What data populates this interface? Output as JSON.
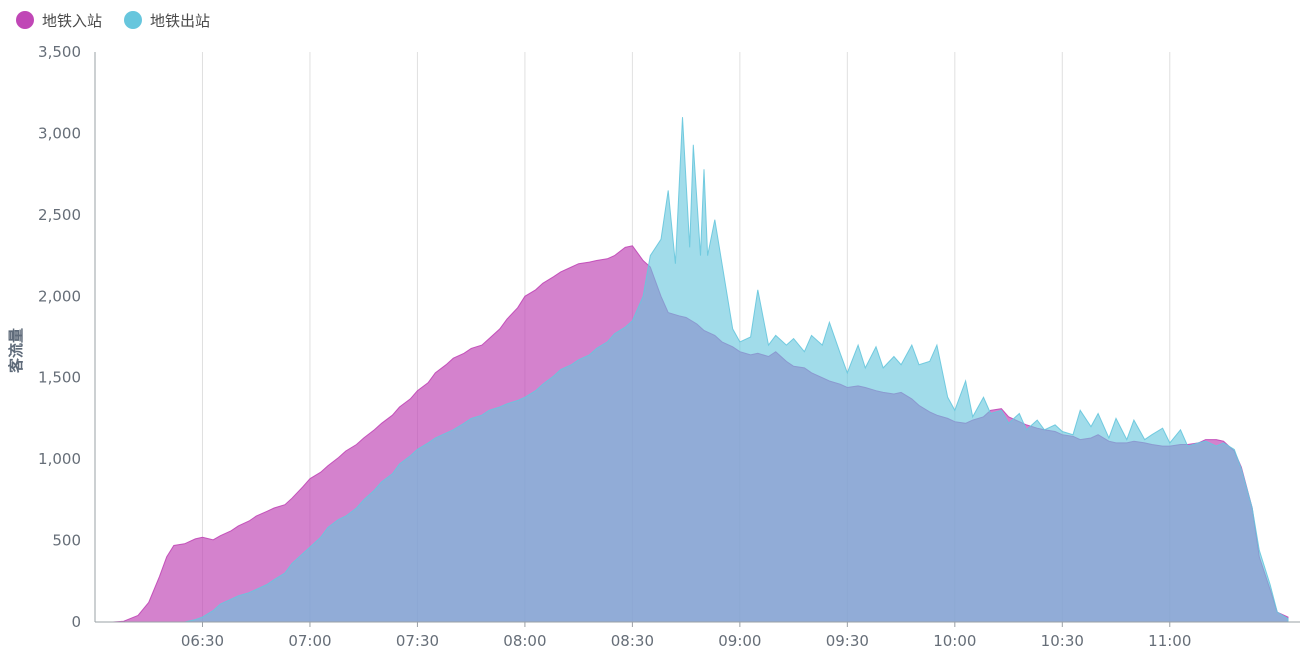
{
  "legend": {
    "in_label": "地铁入站",
    "out_label": "地铁出站"
  },
  "colors": {
    "in": "#c047b6",
    "out": "#67c6dd",
    "grid": "#e0e0e0",
    "axis": "#9aa0a6",
    "tick_text": "#666e78"
  },
  "chart_data": {
    "type": "area",
    "title": "",
    "xlabel": "",
    "ylabel": "客流量",
    "ylim": [
      0,
      3500
    ],
    "yticks": [
      0,
      500,
      1000,
      1500,
      2000,
      2500,
      3000,
      3500
    ],
    "ytick_labels": [
      "0",
      "500",
      "1,000",
      "1,500",
      "2,000",
      "2,500",
      "3,000",
      "3,500"
    ],
    "xlim": [
      "06:00",
      "11:33"
    ],
    "xticks": [
      "06:30",
      "07:00",
      "07:30",
      "08:00",
      "08:30",
      "09:00",
      "09:30",
      "10:00",
      "10:30",
      "11:00"
    ],
    "legend_position": "top-left",
    "grid": "vertical",
    "series": [
      {
        "name": "地铁入站",
        "color": "#c047b6",
        "points": [
          [
            "06:00",
            0
          ],
          [
            "06:05",
            0
          ],
          [
            "06:08",
            5
          ],
          [
            "06:12",
            40
          ],
          [
            "06:15",
            120
          ],
          [
            "06:18",
            280
          ],
          [
            "06:20",
            400
          ],
          [
            "06:22",
            470
          ],
          [
            "06:25",
            480
          ],
          [
            "06:28",
            510
          ],
          [
            "06:30",
            520
          ],
          [
            "06:33",
            505
          ],
          [
            "06:35",
            530
          ],
          [
            "06:38",
            560
          ],
          [
            "06:40",
            590
          ],
          [
            "06:43",
            620
          ],
          [
            "06:45",
            650
          ],
          [
            "06:48",
            680
          ],
          [
            "06:50",
            700
          ],
          [
            "06:53",
            720
          ],
          [
            "06:55",
            760
          ],
          [
            "06:58",
            830
          ],
          [
            "07:00",
            880
          ],
          [
            "07:03",
            920
          ],
          [
            "07:05",
            960
          ],
          [
            "07:08",
            1010
          ],
          [
            "07:10",
            1050
          ],
          [
            "07:13",
            1090
          ],
          [
            "07:15",
            1130
          ],
          [
            "07:18",
            1180
          ],
          [
            "07:20",
            1220
          ],
          [
            "07:23",
            1270
          ],
          [
            "07:25",
            1320
          ],
          [
            "07:28",
            1370
          ],
          [
            "07:30",
            1420
          ],
          [
            "07:33",
            1470
          ],
          [
            "07:35",
            1530
          ],
          [
            "07:38",
            1580
          ],
          [
            "07:40",
            1620
          ],
          [
            "07:43",
            1650
          ],
          [
            "07:45",
            1680
          ],
          [
            "07:48",
            1700
          ],
          [
            "07:50",
            1740
          ],
          [
            "07:53",
            1800
          ],
          [
            "07:55",
            1860
          ],
          [
            "07:58",
            1930
          ],
          [
            "08:00",
            2000
          ],
          [
            "08:03",
            2040
          ],
          [
            "08:05",
            2080
          ],
          [
            "08:08",
            2120
          ],
          [
            "08:10",
            2150
          ],
          [
            "08:13",
            2180
          ],
          [
            "08:15",
            2200
          ],
          [
            "08:18",
            2210
          ],
          [
            "08:20",
            2220
          ],
          [
            "08:23",
            2230
          ],
          [
            "08:25",
            2250
          ],
          [
            "08:28",
            2300
          ],
          [
            "08:30",
            2310
          ],
          [
            "08:33",
            2220
          ],
          [
            "08:35",
            2180
          ],
          [
            "08:38",
            2000
          ],
          [
            "08:40",
            1900
          ],
          [
            "08:43",
            1880
          ],
          [
            "08:45",
            1870
          ],
          [
            "08:48",
            1830
          ],
          [
            "08:50",
            1790
          ],
          [
            "08:53",
            1760
          ],
          [
            "08:55",
            1720
          ],
          [
            "08:58",
            1690
          ],
          [
            "09:00",
            1660
          ],
          [
            "09:03",
            1640
          ],
          [
            "09:05",
            1650
          ],
          [
            "09:08",
            1630
          ],
          [
            "09:10",
            1660
          ],
          [
            "09:13",
            1600
          ],
          [
            "09:15",
            1570
          ],
          [
            "09:18",
            1560
          ],
          [
            "09:20",
            1530
          ],
          [
            "09:23",
            1500
          ],
          [
            "09:25",
            1480
          ],
          [
            "09:28",
            1460
          ],
          [
            "09:30",
            1440
          ],
          [
            "09:33",
            1450
          ],
          [
            "09:35",
            1440
          ],
          [
            "09:38",
            1420
          ],
          [
            "09:40",
            1410
          ],
          [
            "09:43",
            1400
          ],
          [
            "09:45",
            1410
          ],
          [
            "09:48",
            1370
          ],
          [
            "09:50",
            1330
          ],
          [
            "09:53",
            1290
          ],
          [
            "09:55",
            1270
          ],
          [
            "09:58",
            1250
          ],
          [
            "10:00",
            1230
          ],
          [
            "10:03",
            1220
          ],
          [
            "10:05",
            1240
          ],
          [
            "10:08",
            1260
          ],
          [
            "10:10",
            1300
          ],
          [
            "10:13",
            1310
          ],
          [
            "10:15",
            1260
          ],
          [
            "10:18",
            1230
          ],
          [
            "10:20",
            1210
          ],
          [
            "10:23",
            1190
          ],
          [
            "10:25",
            1180
          ],
          [
            "10:28",
            1170
          ],
          [
            "10:30",
            1150
          ],
          [
            "10:33",
            1140
          ],
          [
            "10:35",
            1120
          ],
          [
            "10:38",
            1130
          ],
          [
            "10:40",
            1150
          ],
          [
            "10:43",
            1110
          ],
          [
            "10:45",
            1100
          ],
          [
            "10:48",
            1100
          ],
          [
            "10:50",
            1110
          ],
          [
            "10:53",
            1100
          ],
          [
            "10:55",
            1090
          ],
          [
            "10:58",
            1080
          ],
          [
            "11:00",
            1080
          ],
          [
            "11:03",
            1090
          ],
          [
            "11:05",
            1090
          ],
          [
            "11:08",
            1100
          ],
          [
            "11:10",
            1120
          ],
          [
            "11:13",
            1120
          ],
          [
            "11:15",
            1110
          ],
          [
            "11:18",
            1050
          ],
          [
            "11:20",
            950
          ],
          [
            "11:23",
            700
          ],
          [
            "11:25",
            400
          ],
          [
            "11:28",
            200
          ],
          [
            "11:30",
            60
          ],
          [
            "11:33",
            30
          ]
        ]
      },
      {
        "name": "地铁出站",
        "color": "#67c6dd",
        "points": [
          [
            "06:00",
            0
          ],
          [
            "06:25",
            0
          ],
          [
            "06:28",
            15
          ],
          [
            "06:30",
            30
          ],
          [
            "06:33",
            70
          ],
          [
            "06:35",
            110
          ],
          [
            "06:38",
            140
          ],
          [
            "06:40",
            160
          ],
          [
            "06:43",
            180
          ],
          [
            "06:45",
            200
          ],
          [
            "06:48",
            230
          ],
          [
            "06:50",
            260
          ],
          [
            "06:53",
            300
          ],
          [
            "06:55",
            360
          ],
          [
            "06:58",
            420
          ],
          [
            "07:00",
            460
          ],
          [
            "07:03",
            520
          ],
          [
            "07:05",
            580
          ],
          [
            "07:08",
            630
          ],
          [
            "07:10",
            650
          ],
          [
            "07:13",
            700
          ],
          [
            "07:15",
            750
          ],
          [
            "07:18",
            810
          ],
          [
            "07:20",
            860
          ],
          [
            "07:23",
            910
          ],
          [
            "07:25",
            970
          ],
          [
            "07:28",
            1020
          ],
          [
            "07:30",
            1060
          ],
          [
            "07:33",
            1100
          ],
          [
            "07:35",
            1130
          ],
          [
            "07:38",
            1160
          ],
          [
            "07:40",
            1180
          ],
          [
            "07:43",
            1220
          ],
          [
            "07:45",
            1250
          ],
          [
            "07:48",
            1270
          ],
          [
            "07:50",
            1300
          ],
          [
            "07:53",
            1320
          ],
          [
            "07:55",
            1340
          ],
          [
            "07:58",
            1360
          ],
          [
            "08:00",
            1380
          ],
          [
            "08:03",
            1420
          ],
          [
            "08:05",
            1460
          ],
          [
            "08:08",
            1510
          ],
          [
            "08:10",
            1550
          ],
          [
            "08:13",
            1580
          ],
          [
            "08:15",
            1610
          ],
          [
            "08:18",
            1640
          ],
          [
            "08:20",
            1680
          ],
          [
            "08:23",
            1720
          ],
          [
            "08:25",
            1770
          ],
          [
            "08:28",
            1810
          ],
          [
            "08:30",
            1850
          ],
          [
            "08:33",
            2000
          ],
          [
            "08:35",
            2250
          ],
          [
            "08:38",
            2350
          ],
          [
            "08:40",
            2650
          ],
          [
            "08:42",
            2200
          ],
          [
            "08:44",
            3100
          ],
          [
            "08:46",
            2300
          ],
          [
            "08:47",
            2930
          ],
          [
            "08:49",
            2250
          ],
          [
            "08:50",
            2780
          ],
          [
            "08:51",
            2250
          ],
          [
            "08:53",
            2470
          ],
          [
            "08:55",
            2200
          ],
          [
            "08:58",
            1800
          ],
          [
            "09:00",
            1720
          ],
          [
            "09:03",
            1750
          ],
          [
            "09:05",
            2040
          ],
          [
            "09:08",
            1700
          ],
          [
            "09:10",
            1760
          ],
          [
            "09:13",
            1700
          ],
          [
            "09:15",
            1740
          ],
          [
            "09:18",
            1660
          ],
          [
            "09:20",
            1760
          ],
          [
            "09:23",
            1700
          ],
          [
            "09:25",
            1840
          ],
          [
            "09:28",
            1650
          ],
          [
            "09:30",
            1530
          ],
          [
            "09:33",
            1700
          ],
          [
            "09:35",
            1560
          ],
          [
            "09:38",
            1690
          ],
          [
            "09:40",
            1560
          ],
          [
            "09:43",
            1630
          ],
          [
            "09:45",
            1580
          ],
          [
            "09:48",
            1700
          ],
          [
            "09:50",
            1580
          ],
          [
            "09:53",
            1600
          ],
          [
            "09:55",
            1700
          ],
          [
            "09:58",
            1380
          ],
          [
            "10:00",
            1300
          ],
          [
            "10:03",
            1480
          ],
          [
            "10:05",
            1260
          ],
          [
            "10:08",
            1380
          ],
          [
            "10:10",
            1280
          ],
          [
            "10:13",
            1300
          ],
          [
            "10:15",
            1220
          ],
          [
            "10:18",
            1280
          ],
          [
            "10:20",
            1180
          ],
          [
            "10:23",
            1240
          ],
          [
            "10:25",
            1180
          ],
          [
            "10:28",
            1210
          ],
          [
            "10:30",
            1170
          ],
          [
            "10:33",
            1150
          ],
          [
            "10:35",
            1300
          ],
          [
            "10:38",
            1200
          ],
          [
            "10:40",
            1280
          ],
          [
            "10:43",
            1130
          ],
          [
            "10:45",
            1250
          ],
          [
            "10:48",
            1120
          ],
          [
            "10:50",
            1240
          ],
          [
            "10:53",
            1120
          ],
          [
            "10:55",
            1150
          ],
          [
            "10:58",
            1190
          ],
          [
            "11:00",
            1100
          ],
          [
            "11:03",
            1180
          ],
          [
            "11:05",
            1080
          ],
          [
            "11:08",
            1100
          ],
          [
            "11:10",
            1110
          ],
          [
            "11:13",
            1080
          ],
          [
            "11:15",
            1100
          ],
          [
            "11:18",
            1060
          ],
          [
            "11:20",
            940
          ],
          [
            "11:23",
            700
          ],
          [
            "11:25",
            440
          ],
          [
            "11:28",
            230
          ],
          [
            "11:30",
            60
          ],
          [
            "11:33",
            20
          ]
        ]
      }
    ]
  }
}
